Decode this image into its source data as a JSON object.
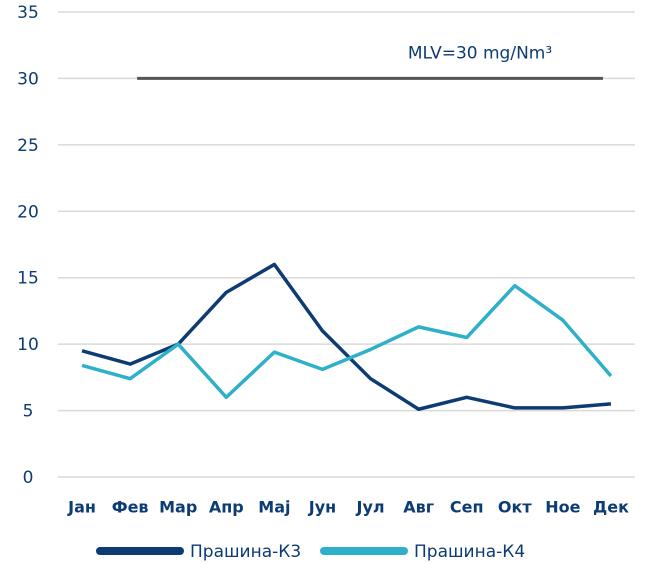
{
  "chart_data": {
    "type": "line",
    "categories": [
      "Јан",
      "Фев",
      "Мар",
      "Апр",
      "Мај",
      "Јун",
      "Јул",
      "Авг",
      "Сеп",
      "Окт",
      "Ное",
      "Дек"
    ],
    "series": [
      {
        "name": "Прашина-К3",
        "color": "#0d3b73",
        "values": [
          9.5,
          8.5,
          10,
          13.9,
          16,
          11,
          7.4,
          5.1,
          6,
          5.2,
          5.2,
          5.5
        ]
      },
      {
        "name": "Прашина-К4",
        "color": "#2eb0c8",
        "values": [
          8.4,
          7.4,
          10,
          6,
          9.4,
          8.1,
          9.6,
          11.3,
          10.5,
          14.4,
          11.8,
          7.6
        ]
      }
    ],
    "reference_line": {
      "value": 30,
      "label": "MLV=30 mg/Nm³",
      "color": "#555555"
    },
    "ylim": [
      0,
      35
    ],
    "yticks": [
      0,
      5,
      10,
      15,
      20,
      25,
      30,
      35
    ],
    "grid": true,
    "legend": "bottom"
  }
}
